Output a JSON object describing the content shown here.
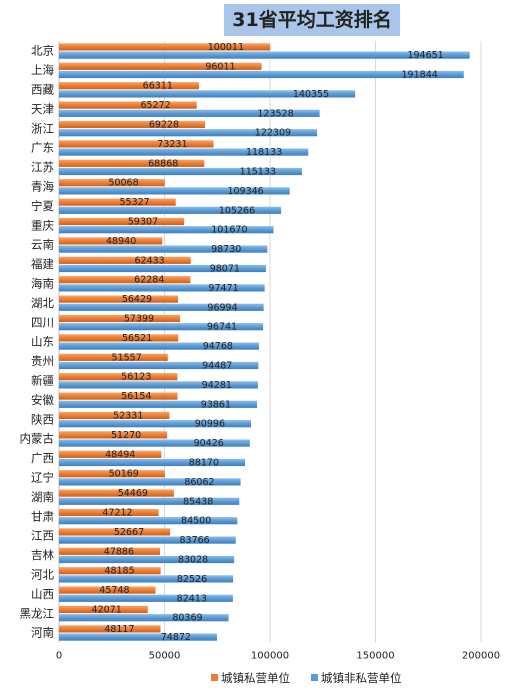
{
  "chart_data": {
    "type": "bar",
    "orientation": "horizontal",
    "title": "31省平均工资排名",
    "categories": [
      "北京",
      "上海",
      "西藏",
      "天津",
      "浙江",
      "广东",
      "江苏",
      "青海",
      "宁夏",
      "重庆",
      "云南",
      "福建",
      "海南",
      "湖北",
      "四川",
      "山东",
      "贵州",
      "新疆",
      "安徽",
      "陕西",
      "内蒙古",
      "广西",
      "辽宁",
      "湖南",
      "甘肃",
      "江西",
      "吉林",
      "河北",
      "山西",
      "黑龙江",
      "河南"
    ],
    "series": [
      {
        "name": "城镇私营单位",
        "color": "#ed7d31",
        "values": [
          100011,
          96011,
          66311,
          65272,
          69228,
          73231,
          68868,
          50068,
          55327,
          59307,
          48940,
          62433,
          62284,
          56429,
          57399,
          56521,
          51557,
          56123,
          56154,
          52331,
          51270,
          48494,
          50169,
          54469,
          47212,
          52667,
          47886,
          48185,
          45748,
          42071,
          48117
        ]
      },
      {
        "name": "城镇非私营单位",
        "color": "#5b9bd5",
        "values": [
          194651,
          191844,
          140355,
          123528,
          122309,
          118133,
          115133,
          109346,
          105266,
          101670,
          98730,
          98071,
          97471,
          96994,
          96741,
          94768,
          94487,
          94281,
          93861,
          90996,
          90426,
          88170,
          86062,
          85438,
          84500,
          83766,
          83028,
          82526,
          82413,
          80369,
          74872
        ]
      }
    ],
    "xlim": [
      0,
      200000
    ],
    "xticks": [
      0,
      50000,
      100000,
      150000,
      200000
    ],
    "legend_position": "bottom"
  }
}
